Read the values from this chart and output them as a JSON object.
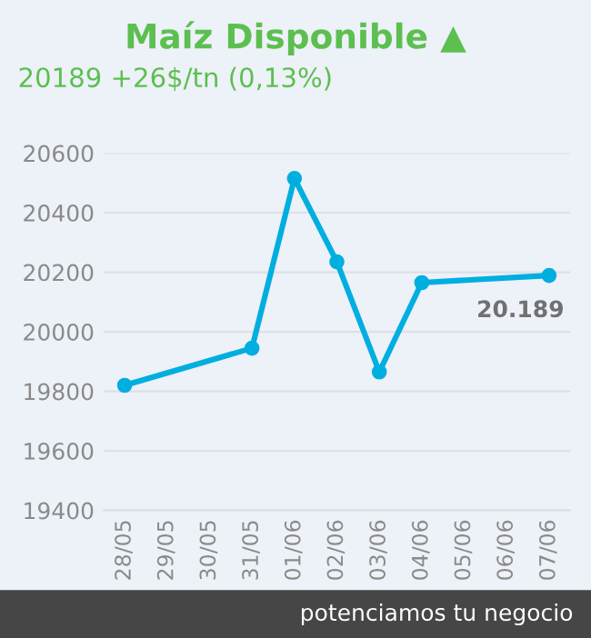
{
  "chart_data": {
    "type": "line",
    "title": "Maíz Disponible ▲",
    "subtitle": "20189 +26$/tn (0,13%)",
    "categories": [
      "28/05",
      "29/05",
      "30/05",
      "31/05",
      "01/06",
      "02/06",
      "03/06",
      "04/06",
      "05/06",
      "06/06",
      "07/06"
    ],
    "series": [
      {
        "color": "#00aee0",
        "x": [
          "28/05",
          "31/05",
          "01/06",
          "02/06",
          "03/06",
          "04/06",
          "07/06"
        ],
        "values": [
          19820,
          19945,
          20515,
          20235,
          19865,
          20165,
          20189
        ],
        "value_labels": [
          null,
          null,
          null,
          null,
          null,
          null,
          "20.189"
        ]
      }
    ],
    "ylim": [
      19400,
      20600
    ],
    "yticks": [
      19400,
      19600,
      19800,
      20000,
      20200,
      20400,
      20600
    ],
    "grid": "y",
    "marker": "circle",
    "line_style": "solid",
    "legend": false,
    "annotations": [
      "potenciamos tu negocio"
    ]
  }
}
